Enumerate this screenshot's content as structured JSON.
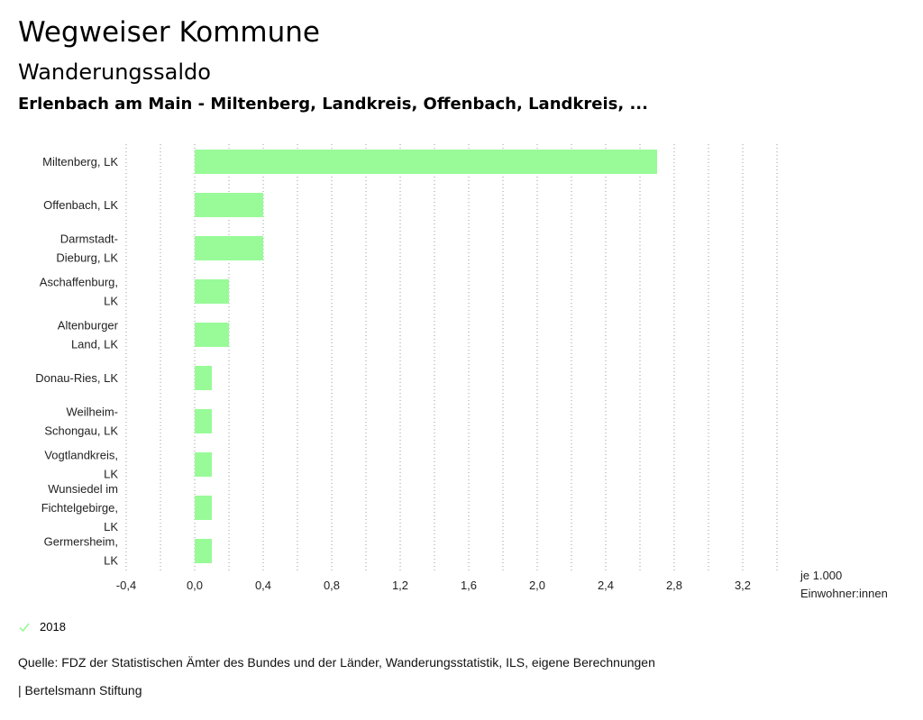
{
  "header": {
    "title": "Wegweiser Kommune",
    "subtitle": "Wanderungssaldo",
    "region": "Erlenbach am Main - Miltenberg, Landkreis, Offenbach, Landkreis, ..."
  },
  "chart_data": {
    "type": "bar",
    "orientation": "horizontal",
    "categories": [
      [
        "Miltenberg, LK"
      ],
      [
        "Offenbach, LK"
      ],
      [
        "Darmstadt-",
        "Dieburg, LK"
      ],
      [
        "Aschaffenburg,",
        "LK"
      ],
      [
        "Altenburger",
        "Land, LK"
      ],
      [
        "Donau-Ries, LK"
      ],
      [
        "Weilheim-",
        "Schongau, LK"
      ],
      [
        "Vogtlandkreis,",
        "LK"
      ],
      [
        "Wunsiedel im",
        "Fichtelgebirge,",
        "LK"
      ],
      [
        "Germersheim,",
        "LK"
      ]
    ],
    "series": [
      {
        "name": "2018",
        "color": "#98fb98",
        "values": [
          2.7,
          0.4,
          0.4,
          0.2,
          0.2,
          0.1,
          0.1,
          0.1,
          0.1,
          0.1
        ]
      }
    ],
    "xlim": [
      -0.4,
      3.4
    ],
    "ticks": [
      -0.4,
      0.0,
      0.4,
      0.8,
      1.2,
      1.6,
      2.0,
      2.4,
      2.8,
      3.2
    ],
    "tick_labels": [
      "-0,4",
      "0,0",
      "0,4",
      "0,8",
      "1,2",
      "1,6",
      "2,0",
      "2,4",
      "2,8",
      "3,2"
    ],
    "grid_step": 0.2,
    "unit_label": [
      "je 1.000",
      "Einwohner:innen"
    ],
    "legend": "bottom-left"
  },
  "legend": {
    "label": "2018",
    "color": "#98fb98"
  },
  "footer": {
    "source": "Quelle: FDZ der Statistischen Ämter des Bundes und der Länder, Wanderungsstatistik, ILS, eigene Berechnungen",
    "credit": "| Bertelsmann Stiftung"
  }
}
